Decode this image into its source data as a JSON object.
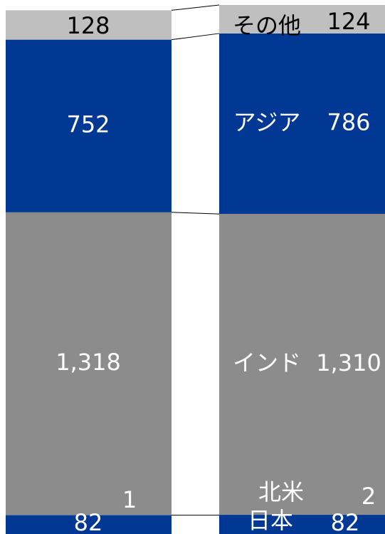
{
  "chart_data": {
    "type": "stacked_bar",
    "categories": [
      null,
      null
    ],
    "ylim": [
      0,
      2304
    ],
    "series": [
      {
        "name": "日本",
        "color": "#003893",
        "label_color": "#ffffff",
        "values": [
          82,
          82
        ]
      },
      {
        "name": "北米",
        "color": "#003893",
        "label_color": "#ffffff",
        "values": [
          1,
          2
        ]
      },
      {
        "name": "インド",
        "color": "#8c8c8c",
        "label_color": "#ffffff",
        "values": [
          1318,
          1310
        ],
        "value_labels": [
          "1,318",
          "1,310"
        ]
      },
      {
        "name": "アジア",
        "color": "#003893",
        "label_color": "#ffffff",
        "values": [
          752,
          786
        ]
      },
      {
        "name": "その他",
        "color": "#bfbfbf",
        "label_color": "#000000",
        "values": [
          128,
          124
        ]
      }
    ]
  }
}
